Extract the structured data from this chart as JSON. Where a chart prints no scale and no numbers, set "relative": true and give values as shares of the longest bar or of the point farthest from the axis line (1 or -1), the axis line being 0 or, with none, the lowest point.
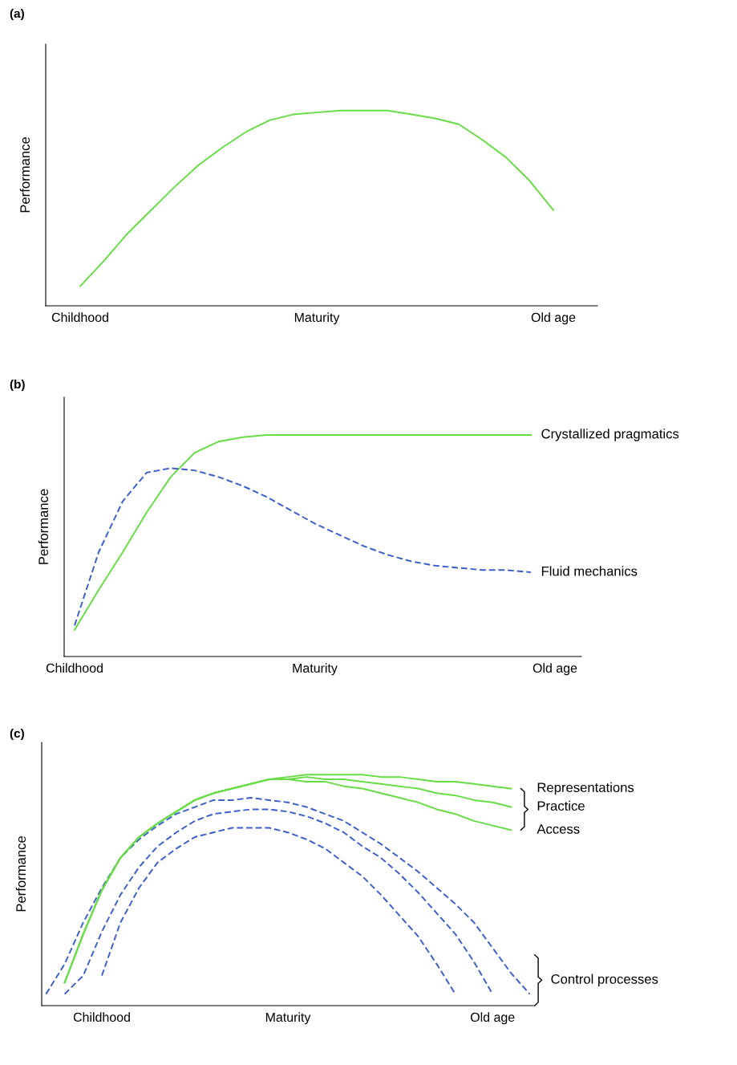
{
  "chart_data": [
    {
      "type": "line",
      "title": "(a)",
      "ylabel": "Performance",
      "relative": true,
      "tick_labels": "x",
      "legend": false,
      "grid": false,
      "categories": [
        "Childhood",
        null,
        null,
        null,
        null,
        null,
        null,
        null,
        null,
        null,
        "Maturity",
        null,
        null,
        null,
        null,
        null,
        null,
        null,
        null,
        null,
        "Old age"
      ],
      "series": [
        {
          "color": "#66dd44",
          "line_style": "solid",
          "values": [
            0.1,
            0.23,
            0.37,
            0.49,
            0.61,
            0.72,
            0.81,
            0.89,
            0.95,
            0.98,
            0.99,
            1,
            1,
            1,
            0.98,
            0.96,
            0.93,
            0.85,
            0.76,
            0.64,
            0.49
          ]
        }
      ]
    },
    {
      "type": "line",
      "title": "(b)",
      "ylabel": "Performance",
      "relative": true,
      "tick_labels": "x",
      "legend": false,
      "grid": false,
      "categories": [
        "Childhood",
        null,
        null,
        null,
        null,
        null,
        null,
        null,
        null,
        null,
        "Maturity",
        null,
        null,
        null,
        null,
        null,
        null,
        null,
        null,
        null,
        "Old age"
      ],
      "series": [
        {
          "name": "Crystallized pragmatics",
          "color": "#66dd44",
          "line_style": "solid",
          "values": [
            0.12,
            0.3,
            0.47,
            0.65,
            0.81,
            0.92,
            0.97,
            0.99,
            1,
            1,
            1,
            1,
            1,
            1,
            1,
            1,
            1,
            1,
            1,
            1,
            null
          ]
        },
        {
          "name": "Fluid mechanics",
          "color": "#3a5fcd",
          "line_style": "dashed",
          "values": [
            0.14,
            0.47,
            0.7,
            0.83,
            0.85,
            0.84,
            0.81,
            0.77,
            0.72,
            0.66,
            0.6,
            0.55,
            0.5,
            0.46,
            0.43,
            0.41,
            0.4,
            0.39,
            0.39,
            0.38,
            null
          ]
        }
      ]
    },
    {
      "type": "line",
      "title": "(c)",
      "ylabel": "Performance",
      "relative": true,
      "tick_labels": "x",
      "legend": false,
      "grid": false,
      "annotations": [
        "Control processes"
      ],
      "categories": [
        null,
        null,
        null,
        "Childhood",
        null,
        null,
        null,
        null,
        null,
        null,
        null,
        null,
        null,
        "Maturity",
        null,
        null,
        null,
        null,
        null,
        null,
        null,
        null,
        null,
        null,
        "Old age",
        null,
        null
      ],
      "series": [
        {
          "color": "#3a5fcd",
          "line_style": "dashed",
          "values": [
            0.05,
            0.18,
            0.36,
            0.51,
            0.64,
            0.72,
            0.78,
            0.83,
            0.86,
            0.89,
            0.89,
            0.9,
            0.89,
            0.88,
            0.86,
            0.83,
            0.8,
            0.75,
            0.7,
            0.64,
            0.58,
            0.51,
            0.44,
            0.36,
            0.25,
            0.14,
            0.05
          ]
        },
        {
          "color": "#3a5fcd",
          "line_style": "dashed",
          "values": [
            null,
            0.05,
            0.13,
            0.32,
            0.48,
            0.6,
            0.69,
            0.75,
            0.8,
            0.83,
            0.84,
            0.85,
            0.85,
            0.84,
            0.82,
            0.79,
            0.75,
            0.69,
            0.64,
            0.57,
            0.49,
            0.4,
            0.31,
            0.19,
            0.05,
            null,
            null
          ]
        },
        {
          "color": "#3a5fcd",
          "line_style": "dashed",
          "values": [
            null,
            null,
            null,
            0.13,
            0.36,
            0.51,
            0.62,
            0.68,
            0.73,
            0.75,
            0.77,
            0.77,
            0.77,
            0.75,
            0.72,
            0.68,
            0.62,
            0.56,
            0.48,
            0.39,
            0.3,
            0.18,
            0.05,
            null,
            null,
            null,
            null
          ]
        },
        {
          "name": "Representations",
          "color": "#66dd44",
          "line_style": "solid",
          "values": [
            null,
            0.1,
            0.31,
            0.5,
            0.64,
            0.73,
            0.79,
            0.84,
            0.89,
            0.92,
            0.94,
            0.96,
            0.98,
            0.99,
            1,
            1,
            1,
            1,
            0.99,
            0.99,
            0.98,
            0.97,
            0.97,
            0.96,
            0.95,
            0.94,
            null
          ]
        },
        {
          "name": "Practice",
          "color": "#66dd44",
          "line_style": "solid",
          "values": [
            null,
            0.1,
            0.31,
            0.5,
            0.64,
            0.73,
            0.79,
            0.84,
            0.89,
            0.92,
            0.94,
            0.96,
            0.98,
            0.98,
            0.99,
            0.98,
            0.98,
            0.97,
            0.96,
            0.95,
            0.94,
            0.92,
            0.91,
            0.89,
            0.88,
            0.86,
            null
          ]
        },
        {
          "name": "Access",
          "color": "#66dd44",
          "line_style": "solid",
          "values": [
            null,
            0.1,
            0.31,
            0.5,
            0.64,
            0.73,
            0.79,
            0.84,
            0.89,
            0.92,
            0.94,
            0.96,
            0.98,
            0.98,
            0.97,
            0.97,
            0.95,
            0.94,
            0.92,
            0.9,
            0.88,
            0.85,
            0.83,
            0.8,
            0.78,
            0.76,
            null
          ]
        }
      ]
    }
  ]
}
